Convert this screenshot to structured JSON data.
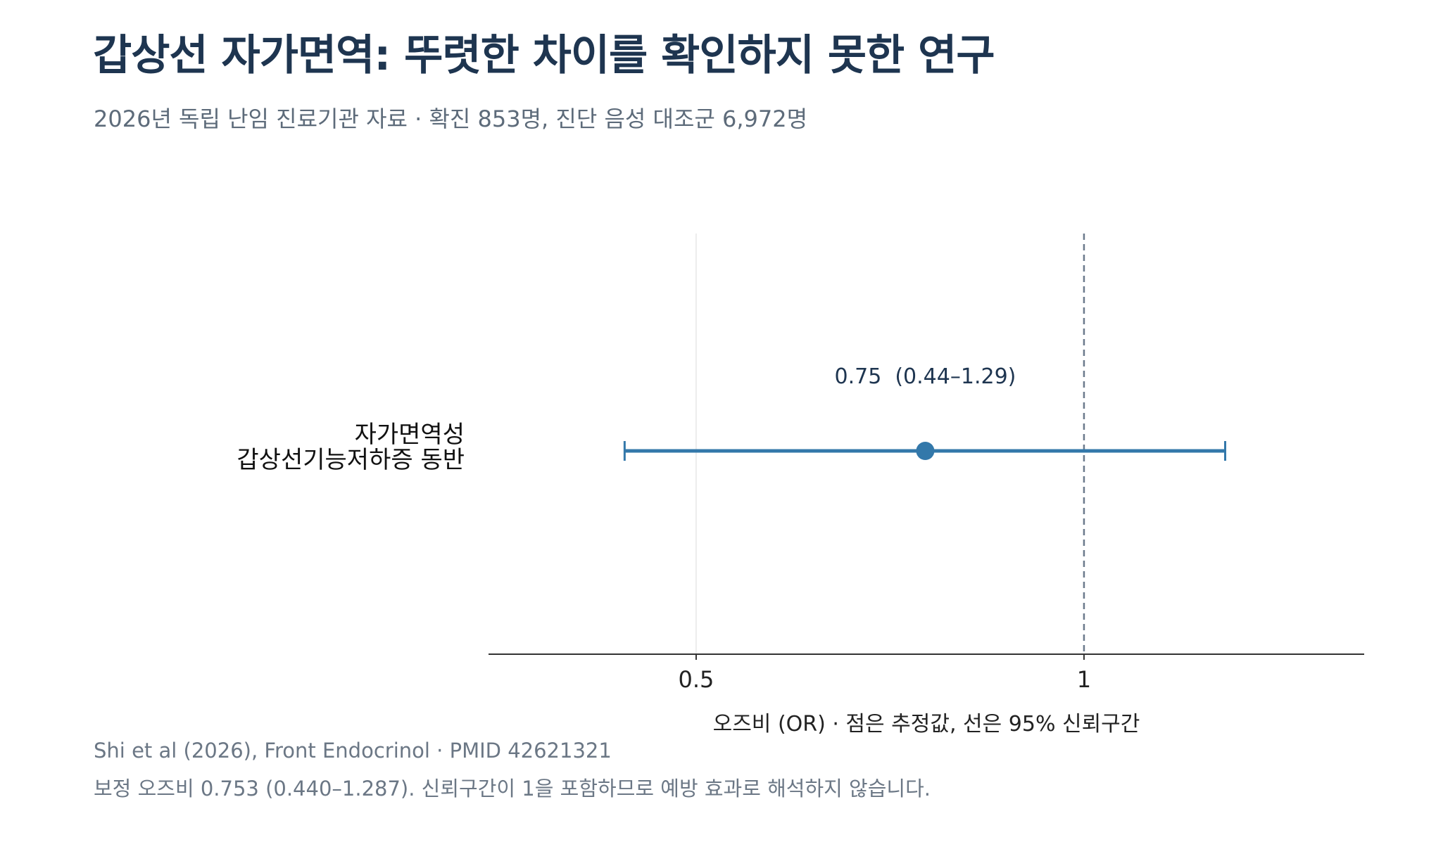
{
  "header": {
    "title": "갑상선 자가면역: 뚜렷한 차이를 확인하지 못한 연구",
    "subtitle": "2026년 독립 난임 진료기관 자료 · 확진 853명, 진단 음성 대조군 6,972명"
  },
  "chart_data": {
    "type": "forest",
    "xlabel": "오즈비 (OR) · 점은 추정값, 선은 95% 신뢰구간",
    "xscale": "log",
    "xlim": [
      0.345,
      1.65
    ],
    "xticks": [
      0.5,
      1
    ],
    "xtick_labels": [
      "0.5",
      "1"
    ],
    "reference_line": 1,
    "grid": true,
    "rows": [
      {
        "label_lines": [
          "자가면역성",
          "갑상선기능저하증 동반"
        ],
        "estimate": 0.753,
        "ci_low": 0.44,
        "ci_high": 1.287,
        "annotation": "0.75  (0.44–1.29)"
      }
    ],
    "colors": {
      "series": "#3378aa",
      "reference": "#6b7a8c",
      "axis": "#333333",
      "grid": "#e6e6e6"
    }
  },
  "footer": {
    "source": "Shi et al (2026), Front Endocrinol · PMID 42621321",
    "note": "보정 오즈비 0.753 (0.440–1.287). 신뢰구간이 1을 포함하므로 예방 효과로 해석하지 않습니다."
  }
}
